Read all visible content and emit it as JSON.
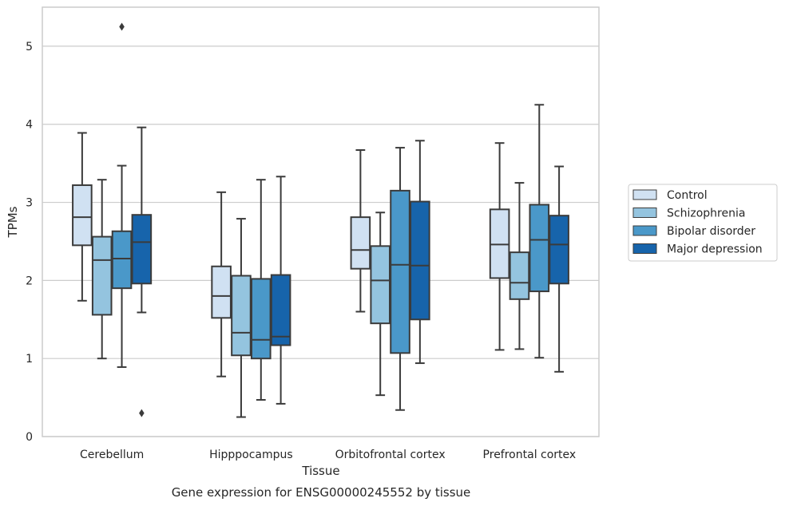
{
  "caption": "Gene expression for ENSG00000245552 by tissue",
  "chart_data": {
    "type": "boxplot",
    "xlabel": "Tissue",
    "ylabel": "TPMs",
    "ylim": [
      0,
      5.5
    ],
    "yticks": [
      0,
      1,
      2,
      3,
      4,
      5
    ],
    "grid": "horizontal",
    "legend_position": "right",
    "categories": [
      "Cerebellum",
      "Hipppocampus",
      "Orbitofrontal cortex",
      "Prefrontal cortex"
    ],
    "series": [
      {
        "name": "Control",
        "color": "#d0e1f2",
        "boxes": [
          {
            "whisker_low": 1.74,
            "q1": 2.45,
            "median": 2.81,
            "q3": 3.22,
            "whisker_high": 3.89,
            "outliers": []
          },
          {
            "whisker_low": 0.77,
            "q1": 1.52,
            "median": 1.8,
            "q3": 2.18,
            "whisker_high": 3.13,
            "outliers": []
          },
          {
            "whisker_low": 1.6,
            "q1": 2.15,
            "median": 2.39,
            "q3": 2.81,
            "whisker_high": 3.67,
            "outliers": []
          },
          {
            "whisker_low": 1.11,
            "q1": 2.03,
            "median": 2.46,
            "q3": 2.91,
            "whisker_high": 3.76,
            "outliers": []
          }
        ]
      },
      {
        "name": "Schizophrenia",
        "color": "#94c4df",
        "boxes": [
          {
            "whisker_low": 1.0,
            "q1": 1.56,
            "median": 2.26,
            "q3": 2.56,
            "whisker_high": 3.29,
            "outliers": []
          },
          {
            "whisker_low": 0.25,
            "q1": 1.04,
            "median": 1.33,
            "q3": 2.06,
            "whisker_high": 2.79,
            "outliers": []
          },
          {
            "whisker_low": 0.53,
            "q1": 1.45,
            "median": 2.0,
            "q3": 2.44,
            "whisker_high": 2.87,
            "outliers": []
          },
          {
            "whisker_low": 1.12,
            "q1": 1.76,
            "median": 1.97,
            "q3": 2.36,
            "whisker_high": 3.25,
            "outliers": []
          }
        ]
      },
      {
        "name": "Bipolar disorder",
        "color": "#4a98c9",
        "boxes": [
          {
            "whisker_low": 0.89,
            "q1": 1.9,
            "median": 2.28,
            "q3": 2.63,
            "whisker_high": 3.47,
            "outliers": [
              5.25
            ]
          },
          {
            "whisker_low": 0.47,
            "q1": 1.0,
            "median": 1.24,
            "q3": 2.02,
            "whisker_high": 3.29,
            "outliers": []
          },
          {
            "whisker_low": 0.34,
            "q1": 1.07,
            "median": 2.2,
            "q3": 3.15,
            "whisker_high": 3.7,
            "outliers": []
          },
          {
            "whisker_low": 1.01,
            "q1": 1.86,
            "median": 2.52,
            "q3": 2.97,
            "whisker_high": 4.25,
            "outliers": []
          }
        ]
      },
      {
        "name": "Major depression",
        "color": "#1764ab",
        "boxes": [
          {
            "whisker_low": 1.59,
            "q1": 1.96,
            "median": 2.49,
            "q3": 2.84,
            "whisker_high": 3.96,
            "outliers": [
              0.3
            ]
          },
          {
            "whisker_low": 0.42,
            "q1": 1.17,
            "median": 1.28,
            "q3": 2.07,
            "whisker_high": 3.33,
            "outliers": []
          },
          {
            "whisker_low": 0.94,
            "q1": 1.5,
            "median": 2.19,
            "q3": 3.01,
            "whisker_high": 3.79,
            "outliers": []
          },
          {
            "whisker_low": 0.83,
            "q1": 1.96,
            "median": 2.46,
            "q3": 2.83,
            "whisker_high": 3.46,
            "outliers": []
          }
        ]
      }
    ]
  }
}
